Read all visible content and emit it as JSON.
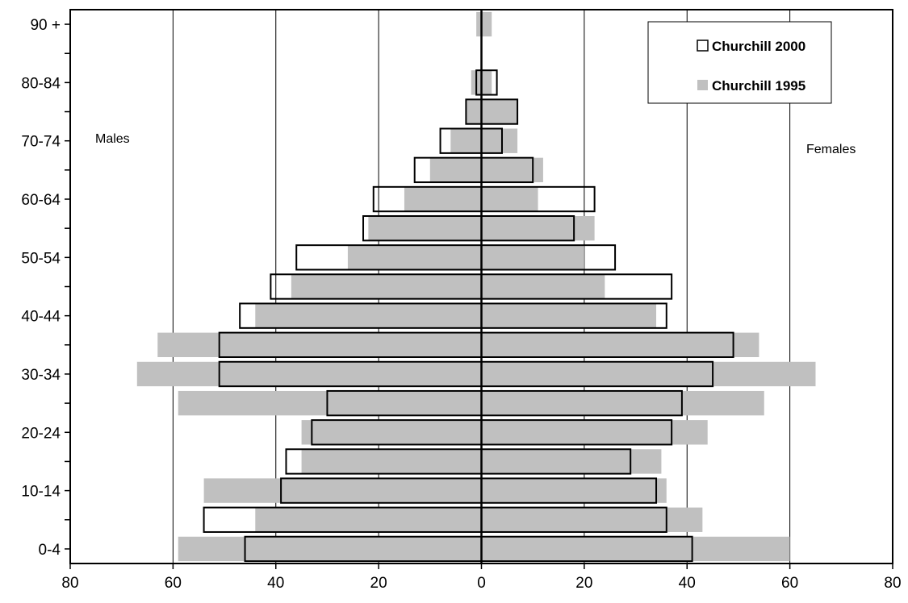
{
  "chart_data": {
    "type": "bar",
    "orientation": "horizontal",
    "title": "",
    "xlabel": "",
    "ylabel": "",
    "xlim": [
      -80,
      80
    ],
    "x_ticks": [
      -80,
      -60,
      -40,
      -20,
      0,
      20,
      40,
      60,
      80
    ],
    "x_tick_labels": [
      "80",
      "60",
      "40",
      "20",
      "0",
      "20",
      "40",
      "60",
      "80"
    ],
    "grid": "vertical",
    "categories": [
      "0-4",
      "5-9",
      "10-14",
      "15-19",
      "20-24",
      "25-29",
      "30-34",
      "35-39",
      "40-44",
      "45-49",
      "50-54",
      "55-59",
      "60-64",
      "65-69",
      "70-74",
      "75-79",
      "80-84",
      "85-89",
      "90 +"
    ],
    "shown_category_labels": [
      "0-4",
      "10-14",
      "20-24",
      "30-34",
      "40-44",
      "50-54",
      "60-64",
      "70-74",
      "80-84",
      "90 +"
    ],
    "side_labels": {
      "left": "Males",
      "right": "Females"
    },
    "legend": {
      "placement": "top-right"
    },
    "series": [
      {
        "name": "Churchill 1995",
        "color": "#c0c0c0",
        "style": "filled",
        "males": [
          59,
          44,
          54,
          35,
          35,
          59,
          67,
          63,
          44,
          37,
          26,
          22,
          15,
          10,
          6,
          3,
          2,
          0,
          1
        ],
        "females": [
          60,
          43,
          36,
          35,
          44,
          55,
          65,
          54,
          34,
          24,
          20,
          22,
          11,
          12,
          7,
          7,
          2,
          0,
          2
        ]
      },
      {
        "name": "Churchill 2000",
        "color": "#000000",
        "style": "outline",
        "males": [
          46,
          54,
          39,
          38,
          33,
          30,
          51,
          51,
          47,
          41,
          36,
          23,
          21,
          13,
          8,
          3,
          1,
          0,
          0
        ],
        "females": [
          41,
          36,
          34,
          29,
          37,
          39,
          45,
          49,
          36,
          37,
          26,
          18,
          22,
          10,
          4,
          7,
          3,
          0,
          0
        ]
      }
    ]
  }
}
